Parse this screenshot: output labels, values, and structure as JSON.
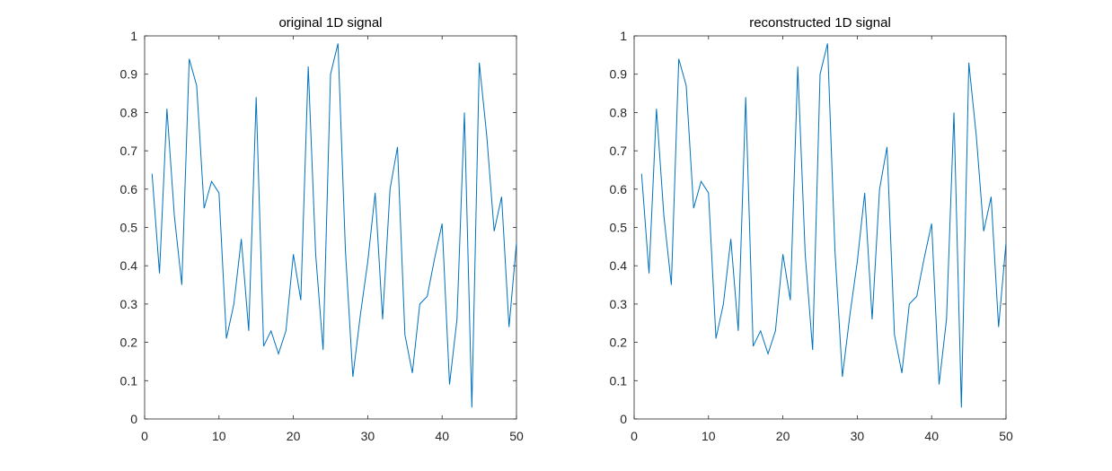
{
  "chart_data": [
    {
      "type": "line",
      "title": "original 1D signal",
      "xlabel": "",
      "ylabel": "",
      "xlim": [
        0,
        50
      ],
      "ylim": [
        0,
        1
      ],
      "xticks": [
        "0",
        "10",
        "20",
        "30",
        "40",
        "50"
      ],
      "yticks": [
        "0",
        "0.1",
        "0.2",
        "0.3",
        "0.4",
        "0.5",
        "0.6",
        "0.7",
        "0.8",
        "0.9",
        "1"
      ],
      "grid": false,
      "color": "#0072BD",
      "x": [
        1,
        2,
        3,
        4,
        5,
        6,
        7,
        8,
        9,
        10,
        11,
        12,
        13,
        14,
        15,
        16,
        17,
        18,
        19,
        20,
        21,
        22,
        23,
        24,
        25,
        26,
        27,
        28,
        29,
        30,
        31,
        32,
        33,
        34,
        35,
        36,
        37,
        38,
        39,
        40,
        41,
        42,
        43,
        44,
        45,
        46,
        47,
        48,
        49,
        50
      ],
      "y": [
        0.64,
        0.38,
        0.81,
        0.53,
        0.35,
        0.94,
        0.87,
        0.55,
        0.62,
        0.59,
        0.21,
        0.3,
        0.47,
        0.23,
        0.84,
        0.19,
        0.23,
        0.17,
        0.23,
        0.43,
        0.31,
        0.92,
        0.43,
        0.18,
        0.9,
        0.98,
        0.44,
        0.11,
        0.27,
        0.41,
        0.59,
        0.26,
        0.6,
        0.71,
        0.22,
        0.12,
        0.3,
        0.32,
        0.42,
        0.51,
        0.09,
        0.26,
        0.8,
        0.03,
        0.93,
        0.74,
        0.49,
        0.58,
        0.24,
        0.46
      ]
    },
    {
      "type": "line",
      "title": "reconstructed 1D signal",
      "xlabel": "",
      "ylabel": "",
      "xlim": [
        0,
        50
      ],
      "ylim": [
        0,
        1
      ],
      "xticks": [
        "0",
        "10",
        "20",
        "30",
        "40",
        "50"
      ],
      "yticks": [
        "0",
        "0.1",
        "0.2",
        "0.3",
        "0.4",
        "0.5",
        "0.6",
        "0.7",
        "0.8",
        "0.9",
        "1"
      ],
      "grid": false,
      "color": "#0072BD",
      "x": [
        1,
        2,
        3,
        4,
        5,
        6,
        7,
        8,
        9,
        10,
        11,
        12,
        13,
        14,
        15,
        16,
        17,
        18,
        19,
        20,
        21,
        22,
        23,
        24,
        25,
        26,
        27,
        28,
        29,
        30,
        31,
        32,
        33,
        34,
        35,
        36,
        37,
        38,
        39,
        40,
        41,
        42,
        43,
        44,
        45,
        46,
        47,
        48,
        49,
        50
      ],
      "y": [
        0.64,
        0.38,
        0.81,
        0.53,
        0.35,
        0.94,
        0.87,
        0.55,
        0.62,
        0.59,
        0.21,
        0.3,
        0.47,
        0.23,
        0.84,
        0.19,
        0.23,
        0.17,
        0.23,
        0.43,
        0.31,
        0.92,
        0.43,
        0.18,
        0.9,
        0.98,
        0.44,
        0.11,
        0.27,
        0.41,
        0.59,
        0.26,
        0.6,
        0.71,
        0.22,
        0.12,
        0.3,
        0.32,
        0.42,
        0.51,
        0.09,
        0.26,
        0.8,
        0.03,
        0.93,
        0.74,
        0.49,
        0.58,
        0.24,
        0.46
      ]
    }
  ]
}
